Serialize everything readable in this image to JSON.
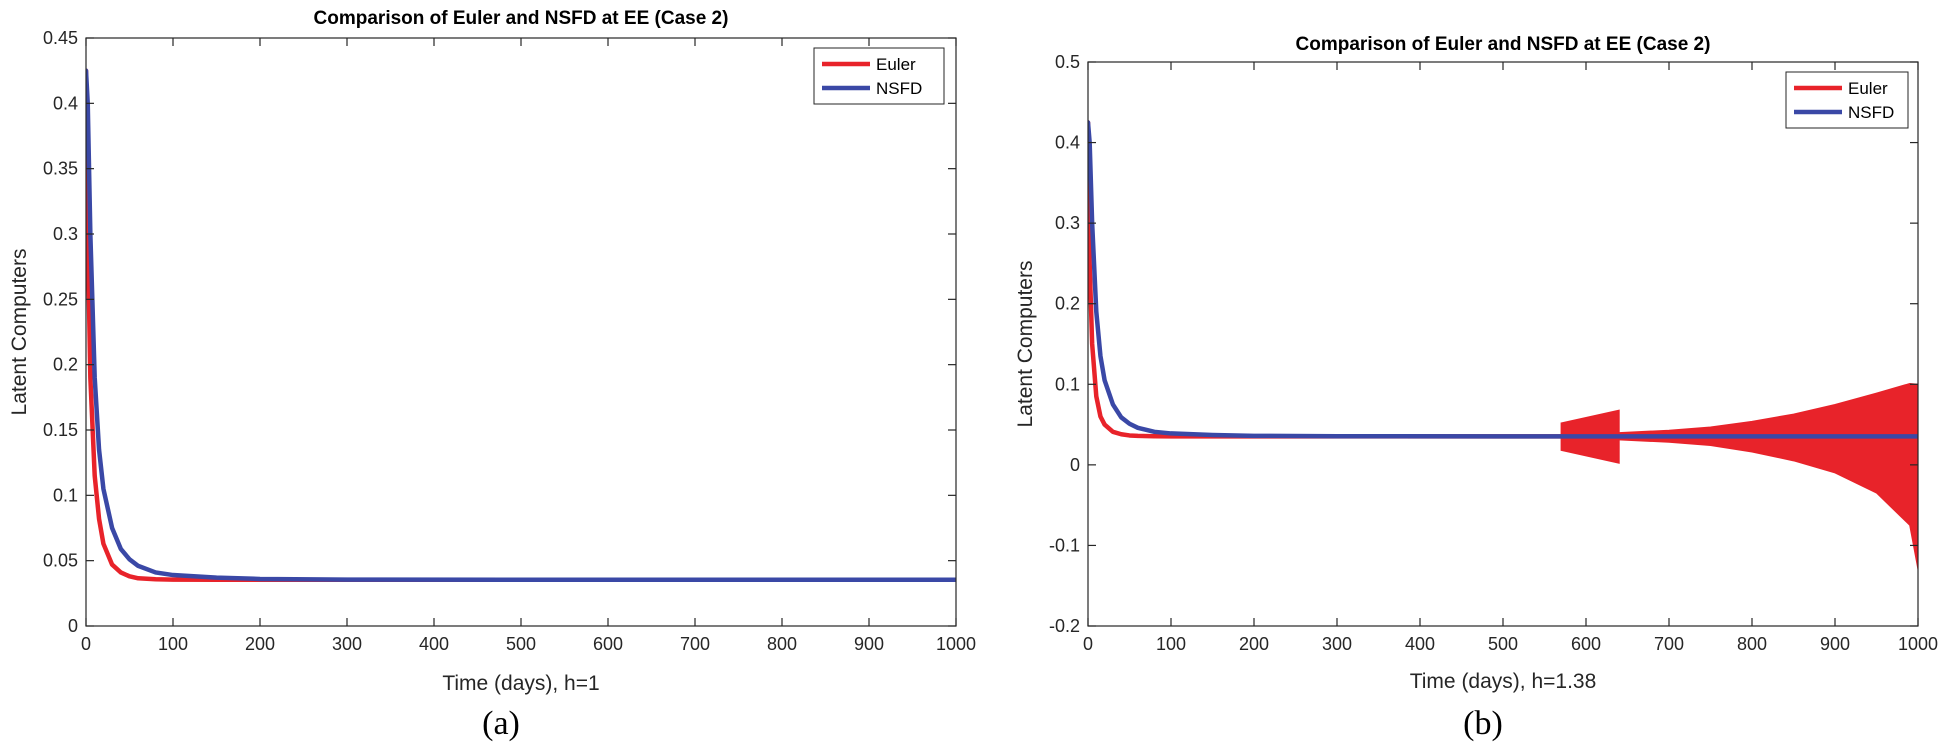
{
  "colors": {
    "euler": "#e8232a",
    "nsfd": "#3a48a6",
    "axis": "#262626"
  },
  "chart_data": [
    {
      "type": "line",
      "title": "Comparison of Euler and NSFD at EE (Case 2)",
      "xlabel": "Time (days), h=1",
      "ylabel": "Latent Computers",
      "panel_label": "(a)",
      "xlim": [
        0,
        1000
      ],
      "ylim": [
        0,
        0.45
      ],
      "xticks": [
        0,
        100,
        200,
        300,
        400,
        500,
        600,
        700,
        800,
        900,
        1000
      ],
      "yticks": [
        0,
        0.05,
        0.1,
        0.15,
        0.2,
        0.25,
        0.3,
        0.35,
        0.4,
        0.45
      ],
      "xtick_labels": [
        "0",
        "100",
        "200",
        "300",
        "400",
        "500",
        "600",
        "700",
        "800",
        "900",
        "1000"
      ],
      "ytick_labels": [
        "0",
        "0.05",
        "0.1",
        "0.15",
        "0.2",
        "0.25",
        "0.3",
        "0.35",
        "0.4",
        "0.45"
      ],
      "legend": {
        "position": "top-right",
        "entries": [
          "Euler",
          "NSFD"
        ]
      },
      "series": [
        {
          "name": "Euler",
          "x": [
            0,
            2,
            5,
            10,
            15,
            20,
            30,
            40,
            50,
            60,
            80,
            100,
            150,
            200,
            300,
            500,
            1000
          ],
          "y": [
            0.425,
            0.3,
            0.19,
            0.115,
            0.082,
            0.063,
            0.047,
            0.041,
            0.038,
            0.0365,
            0.0358,
            0.0355,
            0.0354,
            0.0354,
            0.0354,
            0.0354,
            0.0354
          ]
        },
        {
          "name": "NSFD",
          "x": [
            0,
            2,
            5,
            10,
            15,
            20,
            30,
            40,
            50,
            60,
            80,
            100,
            150,
            200,
            300,
            500,
            1000
          ],
          "y": [
            0.425,
            0.4,
            0.3,
            0.19,
            0.135,
            0.105,
            0.075,
            0.059,
            0.051,
            0.046,
            0.041,
            0.039,
            0.037,
            0.036,
            0.0355,
            0.0354,
            0.0354
          ]
        }
      ]
    },
    {
      "type": "line",
      "title": "Comparison of Euler and NSFD at EE (Case 2)",
      "xlabel": "Time (days), h=1.38",
      "ylabel": "Latent Computers",
      "panel_label": "(b)",
      "xlim": [
        0,
        1000
      ],
      "ylim": [
        -0.2,
        0.5
      ],
      "xticks": [
        0,
        100,
        200,
        300,
        400,
        500,
        600,
        700,
        800,
        900,
        1000
      ],
      "yticks": [
        -0.2,
        -0.1,
        0,
        0.1,
        0.2,
        0.3,
        0.4,
        0.5
      ],
      "xtick_labels": [
        "0",
        "100",
        "200",
        "300",
        "400",
        "500",
        "600",
        "700",
        "800",
        "900",
        "1000"
      ],
      "ytick_labels": [
        "-0.2",
        "-0.1",
        "0",
        "0.1",
        "0.2",
        "0.3",
        "0.4",
        "0.5"
      ],
      "legend": {
        "position": "top-right",
        "entries": [
          "Euler",
          "NSFD"
        ]
      },
      "series": [
        {
          "name": "Euler",
          "x": [
            0,
            2,
            5,
            10,
            15,
            20,
            30,
            40,
            50,
            60,
            80,
            100,
            150,
            200,
            300,
            500,
            1000
          ],
          "y": [
            0.425,
            0.25,
            0.15,
            0.085,
            0.06,
            0.05,
            0.041,
            0.038,
            0.0365,
            0.036,
            0.0355,
            0.0354,
            0.0354,
            0.0354,
            0.0354,
            0.0354,
            0.0354
          ]
        },
        {
          "name": "NSFD",
          "x": [
            0,
            2,
            5,
            10,
            15,
            20,
            30,
            40,
            50,
            60,
            80,
            100,
            150,
            200,
            300,
            500,
            1000
          ],
          "y": [
            0.425,
            0.4,
            0.3,
            0.19,
            0.135,
            0.105,
            0.075,
            0.059,
            0.051,
            0.046,
            0.041,
            0.039,
            0.037,
            0.036,
            0.0355,
            0.0354,
            0.0354
          ]
        }
      ],
      "oscillation_bands": [
        {
          "series": "Euler",
          "x": [
            570,
            640
          ],
          "upper": [
            0.052,
            0.068
          ],
          "lower": [
            0.018,
            0.002
          ]
        },
        {
          "series": "Euler",
          "x": [
            640,
            700,
            750,
            800,
            850,
            900,
            950,
            990,
            1000
          ],
          "upper": [
            0.04,
            0.043,
            0.047,
            0.054,
            0.063,
            0.075,
            0.089,
            0.101,
            0.1
          ],
          "lower": [
            0.031,
            0.028,
            0.024,
            0.016,
            0.005,
            -0.01,
            -0.035,
            -0.075,
            -0.13
          ]
        }
      ]
    }
  ]
}
